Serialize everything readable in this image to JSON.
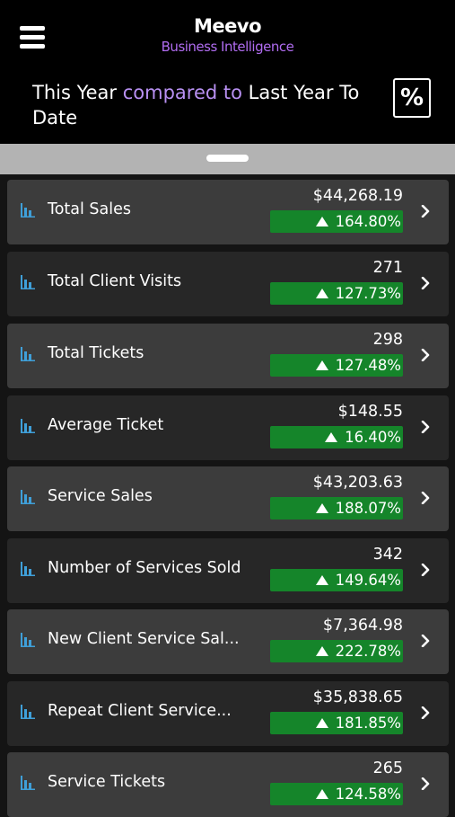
{
  "header": {
    "brand_name": "Meevo",
    "brand_subtitle": "Business Intelligence",
    "heading": {
      "part1": "This Year ",
      "accent": "compared to",
      "part2": " Last Year To Date"
    },
    "percent_button_label": "%"
  },
  "colors": {
    "header_bg": "#000000",
    "accent_purple": "#b890f2",
    "badge_green": "#15852a",
    "card_dark": "#272727",
    "card_light": "#3c3c3c",
    "icon_blue": "#3f9fd8"
  },
  "metrics": [
    {
      "label": "Total Sales",
      "value": "$44,268.19",
      "change": "164.80%"
    },
    {
      "label": "Total Client Visits",
      "value": "271",
      "change": "127.73%"
    },
    {
      "label": "Total Tickets",
      "value": "298",
      "change": "127.48%"
    },
    {
      "label": "Average Ticket",
      "value": "$148.55",
      "change": "16.40%"
    },
    {
      "label": "Service Sales",
      "value": "$43,203.63",
      "change": "188.07%"
    },
    {
      "label": "Number of Services Sold",
      "value": "342",
      "change": "149.64%"
    },
    {
      "label": "New Client Service Sal...",
      "value": "$7,364.98",
      "change": "222.78%"
    },
    {
      "label": "Repeat Client Service...",
      "value": "$35,838.65",
      "change": "181.85%"
    },
    {
      "label": "Service Tickets",
      "value": "265",
      "change": "124.58%"
    }
  ]
}
